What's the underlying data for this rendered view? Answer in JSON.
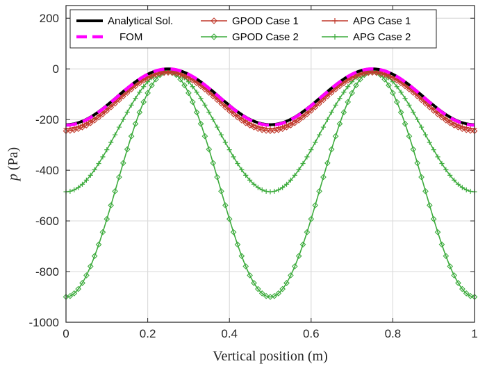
{
  "chart_data": {
    "type": "line",
    "title": "",
    "xlabel": "Vertical position (m)",
    "ylabel_var": "p",
    "ylabel_unit": "(Pa)",
    "xlim": [
      0,
      1
    ],
    "ylim": [
      -1000,
      250
    ],
    "xticks": [
      0,
      0.2,
      0.4,
      0.6,
      0.8,
      1
    ],
    "xtick_labels": [
      "0",
      "0.2",
      "0.4",
      "0.6",
      "0.8",
      "1"
    ],
    "yticks": [
      200,
      0,
      -200,
      -400,
      -600,
      -800,
      -1000
    ],
    "ytick_labels": [
      "200",
      "0",
      "-200",
      "-400",
      "-600",
      "-800",
      "-1000"
    ],
    "grid": true,
    "legend_position": "top",
    "series": [
      {
        "name": "Analytical Sol.",
        "color": "#000000",
        "style": "solid",
        "marker": "none",
        "x": [
          0,
          0.125,
          0.25,
          0.375,
          0.5,
          0.625,
          0.75,
          0.875,
          1
        ],
        "values": [
          -220,
          -110,
          0,
          -110,
          -220,
          -110,
          0,
          -110,
          -220
        ]
      },
      {
        "name": "FOM",
        "color": "#ff00ff",
        "style": "dashed",
        "marker": "none",
        "x": [
          0,
          0.125,
          0.25,
          0.375,
          0.5,
          0.625,
          0.75,
          0.875,
          1
        ],
        "values": [
          -222,
          -111,
          0,
          -111,
          -222,
          -111,
          0,
          -111,
          -222
        ]
      },
      {
        "name": "GPOD Case 1",
        "color": "#c0392b",
        "style": "solid",
        "marker": "diamond",
        "x": [
          0,
          0.125,
          0.25,
          0.375,
          0.5,
          0.625,
          0.75,
          0.875,
          1
        ],
        "values": [
          -245,
          -130,
          -15,
          -130,
          -245,
          -130,
          -15,
          -130,
          -245
        ]
      },
      {
        "name": "APG Case 1",
        "color": "#c0392b",
        "style": "solid",
        "marker": "plus",
        "x": [
          0,
          0.125,
          0.25,
          0.375,
          0.5,
          0.625,
          0.75,
          0.875,
          1
        ],
        "values": [
          -235,
          -122,
          -10,
          -122,
          -235,
          -122,
          -10,
          -122,
          -235
        ]
      },
      {
        "name": "GPOD Case 2",
        "color": "#3cab3c",
        "style": "solid",
        "marker": "diamond",
        "x": [
          0,
          0.125,
          0.25,
          0.375,
          0.5,
          0.625,
          0.75,
          0.875,
          1
        ],
        "values": [
          -900,
          -455,
          -10,
          -455,
          -900,
          -455,
          -10,
          -455,
          -900
        ]
      },
      {
        "name": "APG Case 2",
        "color": "#3cab3c",
        "style": "solid",
        "marker": "plus",
        "x": [
          0,
          0.125,
          0.25,
          0.375,
          0.5,
          0.625,
          0.75,
          0.875,
          1
        ],
        "values": [
          -485,
          -245,
          -5,
          -245,
          -485,
          -245,
          -5,
          -245,
          -485
        ]
      }
    ]
  }
}
